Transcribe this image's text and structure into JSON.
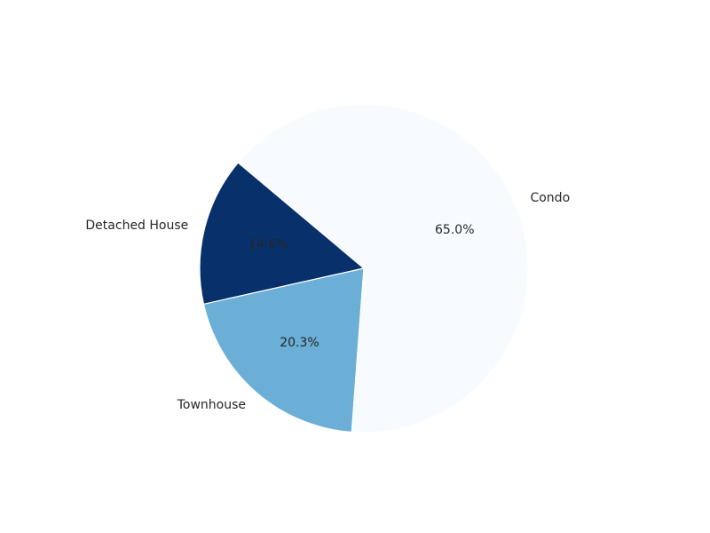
{
  "chart_data": {
    "type": "pie",
    "categories": [
      "Detached House",
      "Townhouse",
      "Condo"
    ],
    "values": [
      14.6,
      20.3,
      65.0
    ],
    "value_labels": [
      "14.6%",
      "20.3%",
      "65.0%"
    ],
    "colors": [
      "#08306b",
      "#6baed6",
      "#f7fbff"
    ],
    "title": "",
    "legend": "none",
    "grid": false
  }
}
